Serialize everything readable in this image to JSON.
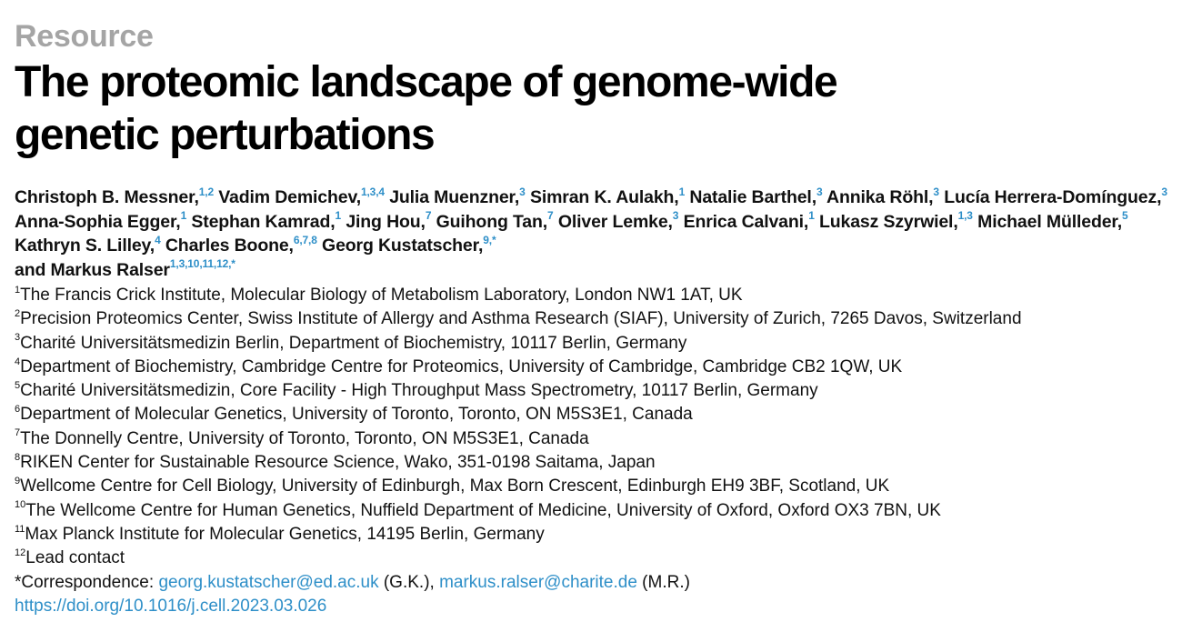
{
  "article_type": "Resource",
  "title_line1": "The proteomic landscape of genome-wide",
  "title_line2": "genetic perturbations",
  "authors": [
    {
      "name": "Christoph B. Messner,",
      "aff": "1,2"
    },
    {
      "name": "Vadim Demichev,",
      "aff": "1,3,4"
    },
    {
      "name": "Julia Muenzner,",
      "aff": "3"
    },
    {
      "name": "Simran K. Aulakh,",
      "aff": "1"
    },
    {
      "name": "Natalie Barthel,",
      "aff": "3"
    },
    {
      "name": "Annika Röhl,",
      "aff": "3"
    },
    {
      "name": "Lucía Herrera-Domínguez,",
      "aff": "3"
    },
    {
      "name": "Anna-Sophia Egger,",
      "aff": "1"
    },
    {
      "name": "Stephan Kamrad,",
      "aff": "1"
    },
    {
      "name": "Jing Hou,",
      "aff": "7"
    },
    {
      "name": "Guihong Tan,",
      "aff": "7"
    },
    {
      "name": "Oliver Lemke,",
      "aff": "3"
    },
    {
      "name": "Enrica Calvani,",
      "aff": "1"
    },
    {
      "name": "Lukasz Szyrwiel,",
      "aff": "1,3"
    },
    {
      "name": "Michael Mülleder,",
      "aff": "5"
    },
    {
      "name": "Kathryn S. Lilley,",
      "aff": "4"
    },
    {
      "name": "Charles Boone,",
      "aff": "6,7,8"
    },
    {
      "name": "Georg Kustatscher,",
      "aff": "9,*"
    },
    {
      "name": "and Markus Ralser",
      "aff": "1,3,10,11,12,*"
    }
  ],
  "affiliations": [
    {
      "num": "1",
      "text": "The Francis Crick Institute, Molecular Biology of Metabolism Laboratory, London NW1 1AT, UK"
    },
    {
      "num": "2",
      "text": "Precision Proteomics Center, Swiss Institute of Allergy and Asthma Research (SIAF), University of Zurich, 7265 Davos, Switzerland"
    },
    {
      "num": "3",
      "text": "Charité Universitätsmedizin Berlin, Department of Biochemistry, 10117 Berlin, Germany"
    },
    {
      "num": "4",
      "text": "Department of Biochemistry, Cambridge Centre for Proteomics, University of Cambridge, Cambridge CB2 1QW, UK"
    },
    {
      "num": "5",
      "text": "Charité Universitätsmedizin, Core Facility - High Throughput Mass Spectrometry, 10117 Berlin, Germany"
    },
    {
      "num": "6",
      "text": "Department of Molecular Genetics, University of Toronto, Toronto, ON M5S3E1, Canada"
    },
    {
      "num": "7",
      "text": "The Donnelly Centre, University of Toronto, Toronto, ON M5S3E1, Canada"
    },
    {
      "num": "8",
      "text": "RIKEN Center for Sustainable Resource Science, Wako, 351-0198 Saitama, Japan"
    },
    {
      "num": "9",
      "text": "Wellcome Centre for Cell Biology, University of Edinburgh, Max Born Crescent, Edinburgh EH9 3BF, Scotland, UK"
    },
    {
      "num": "10",
      "text": "The Wellcome Centre for Human Genetics, Nuffield Department of Medicine, University of Oxford, Oxford OX3 7BN, UK"
    },
    {
      "num": "11",
      "text": "Max Planck Institute for Molecular Genetics, 14195 Berlin, Germany"
    },
    {
      "num": "12",
      "text": "Lead contact"
    }
  ],
  "correspondence": {
    "label": "*Correspondence: ",
    "email1": "georg.kustatscher@ed.ac.uk",
    "initials1": " (G.K.), ",
    "email2": "markus.ralser@charite.de",
    "initials2": " (M.R.)"
  },
  "doi": "https://doi.org/10.1016/j.cell.2023.03.026",
  "colors": {
    "link": "#2e8fc8",
    "kicker": "#a5a5a5",
    "text": "#111111"
  }
}
